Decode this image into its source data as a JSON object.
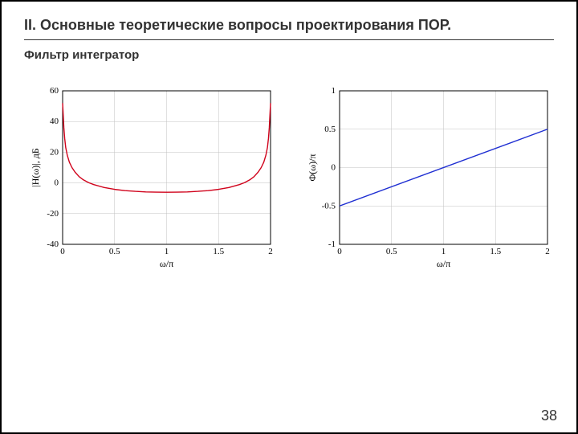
{
  "header": {
    "title": "II. Основные теоретические вопросы проектирования ПОР.",
    "subtitle": "Фильтр интегратор"
  },
  "page_number": "38",
  "chart_left": {
    "type": "line",
    "xlabel": "ω/π",
    "ylabel": "|H(ω)|, дБ",
    "xlim": [
      0,
      2
    ],
    "ylim": [
      -40,
      60
    ],
    "xtick_step": 0.5,
    "ytick_step": 20,
    "xticks": [
      "0",
      "0.5",
      "1",
      "1.5",
      "2"
    ],
    "yticks": [
      "-40",
      "-20",
      "0",
      "20",
      "40",
      "60"
    ],
    "tick_fontsize": 11,
    "label_fontsize": 12,
    "line_color": "#d0021b",
    "line_width": 1.4,
    "background_color": "#ffffff",
    "grid_color": "#c0c0c0",
    "grid_width": 0.5,
    "border_color": "#000000",
    "series": {
      "x": [
        0.0,
        0.006,
        0.012,
        0.02,
        0.03,
        0.045,
        0.065,
        0.09,
        0.12,
        0.16,
        0.2,
        0.25,
        0.3,
        0.4,
        0.5,
        0.6,
        0.7,
        0.8,
        0.9,
        1.0,
        1.1,
        1.2,
        1.3,
        1.4,
        1.5,
        1.6,
        1.7,
        1.75,
        1.8,
        1.84,
        1.88,
        1.91,
        1.935,
        1.955,
        1.97,
        1.98,
        1.988,
        1.994,
        2.0
      ],
      "y": [
        52,
        44,
        36,
        29,
        23,
        18,
        13.5,
        10,
        7,
        4,
        2,
        0.2,
        -1.1,
        -3,
        -4.2,
        -5,
        -5.5,
        -5.85,
        -6,
        -6.05,
        -6,
        -5.85,
        -5.5,
        -5,
        -4.2,
        -3,
        -1.1,
        0.2,
        2,
        4,
        7,
        10,
        13.5,
        18,
        23,
        29,
        36,
        44,
        52
      ]
    }
  },
  "chart_right": {
    "type": "line",
    "xlabel": "ω/π",
    "ylabel": "Φ(ω)/π",
    "xlim": [
      0,
      2
    ],
    "ylim": [
      -1,
      1
    ],
    "xtick_step": 0.5,
    "ytick_step": 0.5,
    "xticks": [
      "0",
      "0.5",
      "1",
      "1.5",
      "2"
    ],
    "yticks": [
      "-1",
      "-0.5",
      "0",
      "0.5",
      "1"
    ],
    "tick_fontsize": 11,
    "label_fontsize": 12,
    "line_color": "#1f2fd2",
    "line_width": 1.4,
    "background_color": "#ffffff",
    "grid_color": "#c0c0c0",
    "grid_width": 0.5,
    "border_color": "#000000",
    "series": {
      "x": [
        0.0,
        2.0
      ],
      "y": [
        -0.5,
        0.5
      ]
    }
  }
}
